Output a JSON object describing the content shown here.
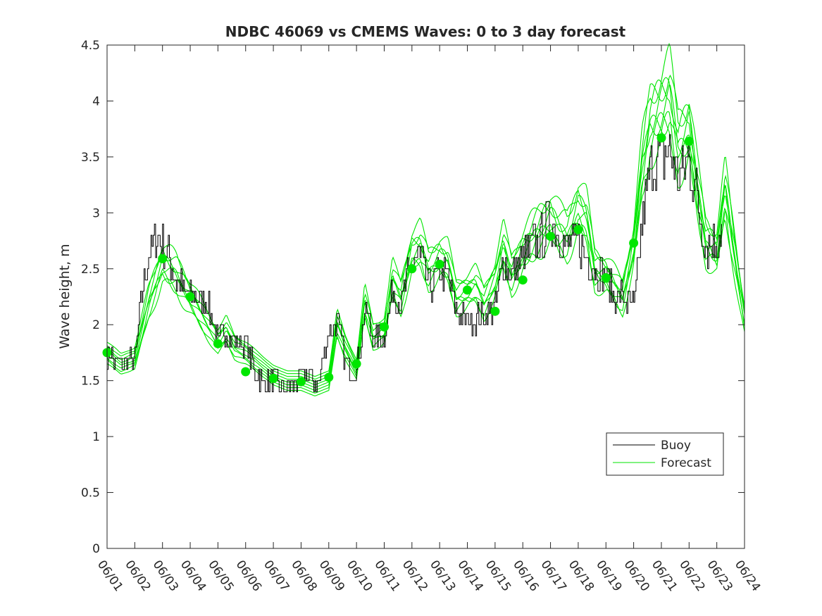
{
  "chart_data": {
    "type": "line",
    "title": "NDBC 46069 vs CMEMS Waves: 0 to 3 day forecast",
    "xlabel": "",
    "ylabel": "Wave height, m",
    "x_unit": "day of June",
    "xlim": [
      1,
      24
    ],
    "ylim": [
      0,
      4.5
    ],
    "yticks": [
      0,
      0.5,
      1,
      1.5,
      2,
      2.5,
      3,
      3.5,
      4,
      4.5
    ],
    "ytick_labels": [
      "0",
      "0.5",
      "1",
      "1.5",
      "2",
      "2.5",
      "3",
      "3.5",
      "4",
      "4.5"
    ],
    "xtick_labels": [
      "06/01",
      "06/02",
      "06/03",
      "06/04",
      "06/05",
      "06/06",
      "06/07",
      "06/08",
      "06/09",
      "06/10",
      "06/11",
      "06/12",
      "06/13",
      "06/14",
      "06/15",
      "06/16",
      "06/17",
      "06/18",
      "06/19",
      "06/20",
      "06/21",
      "06/22",
      "06/23",
      "06/24"
    ],
    "grid": false,
    "legend": {
      "position": "bottom-right",
      "entries": [
        "Buoy",
        "Forecast"
      ]
    },
    "colors": {
      "buoy": "#000000",
      "forecast": "#00e600",
      "marker": "#00e600",
      "axis": "#262626"
    },
    "buoy_anchor_points": {
      "x": [
        1.0,
        1.2,
        1.4,
        1.7,
        2.0,
        2.2,
        2.5,
        2.8,
        3.0,
        3.2,
        3.5,
        3.8,
        4.0,
        4.3,
        4.6,
        5.0,
        5.3,
        5.6,
        6.0,
        6.3,
        6.6,
        7.0,
        7.3,
        7.6,
        8.0,
        8.3,
        8.6,
        9.0,
        9.3,
        9.6,
        10.0,
        10.3,
        10.6,
        11.0,
        11.3,
        11.6,
        12.0,
        12.3,
        12.6,
        13.0,
        13.3,
        13.6,
        14.0,
        14.3,
        14.6,
        15.0,
        15.3,
        15.6,
        16.0,
        16.3,
        16.6,
        17.0,
        17.3,
        17.6,
        18.0,
        18.3,
        18.6,
        19.0,
        19.3,
        19.6,
        20.0,
        20.3,
        20.6,
        21.0,
        21.3,
        21.6,
        22.0,
        22.3,
        22.6,
        23.0,
        23.2
      ],
      "y": [
        1.75,
        1.7,
        1.65,
        1.65,
        1.7,
        2.2,
        2.6,
        2.8,
        2.7,
        2.6,
        2.4,
        2.3,
        2.25,
        2.25,
        2.2,
        1.85,
        1.95,
        1.85,
        1.85,
        1.6,
        1.5,
        1.5,
        1.4,
        1.45,
        1.55,
        1.55,
        1.45,
        1.95,
        2.05,
        1.65,
        1.6,
        2.15,
        1.85,
        1.9,
        2.3,
        2.2,
        2.55,
        2.6,
        2.35,
        2.45,
        2.4,
        2.1,
        2.05,
        2.05,
        2.1,
        2.15,
        2.6,
        2.45,
        2.6,
        2.7,
        2.75,
        2.95,
        2.8,
        2.7,
        2.75,
        2.6,
        2.5,
        2.4,
        2.25,
        2.25,
        2.15,
        2.9,
        3.4,
        3.5,
        3.55,
        3.3,
        3.5,
        3.1,
        2.7,
        2.75,
        2.85
      ]
    },
    "forecast_anchor_points": {
      "x": [
        1.0,
        1.5,
        2.0,
        2.5,
        3.0,
        3.5,
        4.0,
        4.5,
        5.0,
        5.3,
        5.6,
        6.0,
        6.5,
        7.0,
        7.5,
        8.0,
        8.5,
        9.0,
        9.3,
        9.6,
        10.0,
        10.3,
        10.6,
        11.0,
        11.3,
        11.6,
        12.0,
        12.3,
        12.6,
        13.0,
        13.3,
        13.6,
        14.0,
        14.3,
        14.6,
        15.0,
        15.3,
        15.6,
        16.0,
        16.3,
        16.6,
        17.0,
        17.3,
        17.6,
        18.0,
        18.3,
        18.6,
        19.0,
        19.3,
        19.6,
        20.0,
        20.3,
        20.6,
        21.0,
        21.3,
        21.6,
        22.0,
        22.3,
        22.6,
        23.0,
        23.3,
        23.6,
        24.0
      ],
      "y": [
        1.75,
        1.65,
        1.7,
        2.2,
        2.55,
        2.45,
        2.25,
        2.05,
        1.85,
        1.95,
        1.8,
        1.75,
        1.65,
        1.55,
        1.5,
        1.5,
        1.45,
        1.5,
        2.0,
        1.8,
        1.6,
        2.2,
        1.9,
        1.95,
        2.4,
        2.25,
        2.65,
        2.7,
        2.5,
        2.6,
        2.55,
        2.25,
        2.3,
        2.35,
        2.2,
        2.4,
        2.7,
        2.45,
        2.65,
        2.75,
        2.85,
        2.95,
        2.85,
        2.8,
        3.05,
        2.95,
        2.5,
        2.45,
        2.35,
        2.25,
        2.7,
        3.4,
        3.8,
        3.95,
        4.05,
        3.6,
        3.75,
        3.2,
        2.75,
        2.65,
        3.2,
        2.7,
        2.05
      ]
    },
    "forecast_markers": {
      "x": [
        1,
        3,
        4,
        5,
        6,
        7,
        8,
        9,
        10,
        11,
        12,
        13,
        14,
        15,
        16,
        17,
        18,
        19,
        20,
        21,
        22
      ],
      "y": [
        1.75,
        2.59,
        2.25,
        1.83,
        1.58,
        1.52,
        1.49,
        1.53,
        1.65,
        1.98,
        2.5,
        2.54,
        2.31,
        2.12,
        2.4,
        2.79,
        2.85,
        2.42,
        2.73,
        3.67,
        3.64
      ]
    },
    "forecast_ensemble_count": 8
  }
}
